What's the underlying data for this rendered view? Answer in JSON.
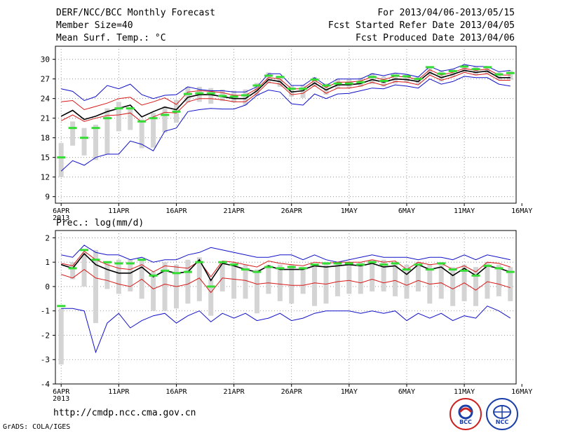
{
  "header": {
    "title": "DERF/NCC/BCC Monthly Forecast",
    "member_size": "Member Size=40",
    "variable": "Mean Surf. Temp.: °C",
    "forecast_range": "For 2013/04/06-2013/05/15",
    "start_ref": "Fcst Started Refer Date 2013/04/05",
    "produced": "Fcst Produced Date 2013/04/06"
  },
  "footer": {
    "url": "http://cmdp.ncc.cma.gov.cn",
    "grads": "GrADS: COLA/IGES",
    "logo_left_text": "BCC",
    "logo_right_text": "NCC"
  },
  "colors": {
    "envelope": "#1010c8",
    "spread": "#d81818",
    "mean": "#000000",
    "box": "#d4d4d4",
    "obs": "#33dd33"
  },
  "chart_data": [
    {
      "type": "line",
      "title": "Mean Surf. Temp.: °C",
      "ylim": [
        8,
        32
      ],
      "yticks": [
        9,
        12,
        15,
        18,
        21,
        24,
        27,
        30
      ],
      "xlim": [
        -0.5,
        39.5
      ],
      "x_ticks": [
        {
          "x": 0,
          "label": "6APR",
          "sub": "2013"
        },
        {
          "x": 5,
          "label": "11APR"
        },
        {
          "x": 10,
          "label": "16APR"
        },
        {
          "x": 15,
          "label": "21APR"
        },
        {
          "x": 20,
          "label": "26APR"
        },
        {
          "x": 25,
          "label": "1MAY"
        },
        {
          "x": 30,
          "label": "6MAY"
        },
        {
          "x": 35,
          "label": "11MAY"
        },
        {
          "x": 40,
          "label": "16MAY"
        }
      ],
      "grid": true,
      "series": [
        {
          "name": "max",
          "role": "envelope",
          "values": [
            25.5,
            25.1,
            23.7,
            24.3,
            26.0,
            25.5,
            26.2,
            24.6,
            24.0,
            24.5,
            24.6,
            25.8,
            25.4,
            25.2,
            25.2,
            25.0,
            25.0,
            25.8,
            27.8,
            27.8,
            26.0,
            26.0,
            27.2,
            26.0,
            27.0,
            27.0,
            27.0,
            27.8,
            27.5,
            27.9,
            27.7,
            27.3,
            28.9,
            28.2,
            28.5,
            29.2,
            28.9,
            28.9,
            28.1,
            28.3
          ]
        },
        {
          "name": "upper",
          "role": "spread",
          "values": [
            23.5,
            23.7,
            22.3,
            22.8,
            23.3,
            24.0,
            24.2,
            23.0,
            23.5,
            24.1,
            23.1,
            25.0,
            25.2,
            25.1,
            24.9,
            24.5,
            24.5,
            25.5,
            27.2,
            27.0,
            25.5,
            25.5,
            26.8,
            25.7,
            26.5,
            26.5,
            26.7,
            27.3,
            26.9,
            27.4,
            27.3,
            26.9,
            28.4,
            27.6,
            28.0,
            28.6,
            28.3,
            28.5,
            27.6,
            27.6
          ]
        },
        {
          "name": "mean",
          "role": "mean",
          "values": [
            21.3,
            22.2,
            20.8,
            21.3,
            22.0,
            22.5,
            23.0,
            21.2,
            22.0,
            22.7,
            22.3,
            24.2,
            24.6,
            24.6,
            24.3,
            24.0,
            24.0,
            25.2,
            26.9,
            26.6,
            25.0,
            25.2,
            26.4,
            25.3,
            26.1,
            26.1,
            26.3,
            26.9,
            26.5,
            27.0,
            26.9,
            26.6,
            28.0,
            27.2,
            27.7,
            28.3,
            28.0,
            28.2,
            27.2,
            27.2
          ]
        },
        {
          "name": "lower",
          "role": "spread",
          "values": [
            20.6,
            21.5,
            20.5,
            21.0,
            21.4,
            21.5,
            21.8,
            20.4,
            21.2,
            21.9,
            21.8,
            23.5,
            24.0,
            24.0,
            23.8,
            23.5,
            23.5,
            24.8,
            26.5,
            26.2,
            24.6,
            24.8,
            26.0,
            24.8,
            25.6,
            25.6,
            25.9,
            26.5,
            26.0,
            26.6,
            26.5,
            26.1,
            27.6,
            26.8,
            27.3,
            28.0,
            27.6,
            27.8,
            26.8,
            26.8
          ]
        },
        {
          "name": "min",
          "role": "envelope",
          "values": [
            12.9,
            14.5,
            13.8,
            15.0,
            15.5,
            15.5,
            17.5,
            17.0,
            16.0,
            19.0,
            19.5,
            22.0,
            22.3,
            22.5,
            22.4,
            22.4,
            23.0,
            24.5,
            25.3,
            25.0,
            23.2,
            23.0,
            24.7,
            24.0,
            24.7,
            24.8,
            25.2,
            25.6,
            25.5,
            26.1,
            25.9,
            25.6,
            27.0,
            26.2,
            26.6,
            27.4,
            27.2,
            27.2,
            26.2,
            25.9
          ]
        }
      ],
      "observed": [
        15.0,
        19.5,
        18.0,
        19.5,
        21.0,
        22.5,
        22.5,
        20.5,
        21.0,
        21.5,
        22.0,
        24.7,
        24.8,
        24.8,
        24.4,
        24.3,
        24.5,
        26.0,
        27.5,
        27.3,
        25.5,
        25.5,
        26.9,
        26.0,
        26.3,
        26.3,
        26.5,
        27.3,
        26.7,
        27.5,
        27.4,
        27.0,
        28.8,
        27.8,
        28.2,
        28.9,
        28.5,
        28.8,
        27.7,
        27.9
      ],
      "boxes": [
        [
          12.0,
          17.2
        ],
        [
          16.8,
          20.5
        ],
        [
          15.3,
          19.5
        ],
        [
          14.6,
          20.0
        ],
        [
          15.5,
          22.5
        ],
        [
          19.0,
          23.5
        ],
        [
          19.2,
          22.6
        ],
        [
          16.4,
          20.8
        ],
        [
          16.5,
          21.8
        ],
        [
          18.8,
          22.8
        ],
        [
          20.3,
          23.8
        ],
        [
          23.4,
          25.8
        ],
        [
          23.5,
          25.8
        ],
        [
          23.2,
          25.6
        ],
        [
          23.6,
          25.4
        ],
        [
          23.4,
          25.2
        ],
        [
          23.0,
          25.4
        ],
        [
          24.4,
          26.4
        ],
        [
          26.3,
          28.0
        ],
        [
          25.8,
          27.3
        ],
        [
          24.3,
          26.0
        ],
        [
          24.1,
          26.1
        ],
        [
          25.8,
          27.3
        ],
        [
          24.6,
          26.3
        ],
        [
          25.5,
          27.0
        ],
        [
          25.6,
          27.0
        ],
        [
          25.8,
          27.2
        ],
        [
          26.2,
          27.9
        ],
        [
          25.8,
          27.4
        ],
        [
          26.3,
          27.8
        ],
        [
          26.5,
          27.7
        ],
        [
          26.2,
          27.4
        ],
        [
          27.6,
          28.9
        ],
        [
          26.6,
          28.3
        ],
        [
          27.3,
          28.6
        ],
        [
          28.0,
          29.2
        ],
        [
          27.6,
          28.9
        ],
        [
          27.8,
          28.9
        ],
        [
          26.9,
          28.0
        ],
        [
          26.9,
          28.3
        ]
      ]
    },
    {
      "type": "line",
      "title": "Prec.: log(mm/d)",
      "ylim": [
        -4,
        2.3
      ],
      "yticks": [
        -4,
        -3,
        -2,
        -1,
        0,
        1,
        2
      ],
      "xlim": [
        -0.5,
        39.5
      ],
      "x_ticks": [
        {
          "x": 0,
          "label": "6APR",
          "sub": "2013"
        },
        {
          "x": 5,
          "label": "11APR"
        },
        {
          "x": 10,
          "label": "16APR"
        },
        {
          "x": 15,
          "label": "21APR"
        },
        {
          "x": 20,
          "label": "26APR"
        },
        {
          "x": 25,
          "label": "1MAY"
        },
        {
          "x": 30,
          "label": "6MAY"
        },
        {
          "x": 35,
          "label": "11MAY"
        },
        {
          "x": 40,
          "label": "16MAY"
        }
      ],
      "grid": true,
      "series": [
        {
          "name": "max",
          "role": "envelope",
          "values": [
            1.3,
            1.2,
            1.7,
            1.4,
            1.3,
            1.3,
            1.1,
            1.2,
            1.0,
            1.1,
            1.1,
            1.3,
            1.4,
            1.6,
            1.5,
            1.4,
            1.3,
            1.2,
            1.2,
            1.3,
            1.3,
            1.1,
            1.3,
            1.1,
            1.0,
            1.1,
            1.2,
            1.3,
            1.2,
            1.2,
            1.2,
            1.1,
            1.2,
            1.2,
            1.1,
            1.3,
            1.1,
            1.3,
            1.2,
            1.1
          ]
        },
        {
          "name": "upper",
          "role": "spread",
          "values": [
            0.95,
            0.85,
            1.45,
            1.1,
            0.9,
            0.75,
            0.7,
            0.9,
            0.6,
            0.85,
            0.8,
            0.75,
            1.05,
            0.4,
            1.05,
            1.0,
            0.9,
            0.8,
            1.05,
            0.95,
            0.9,
            0.85,
            1.0,
            0.95,
            1.0,
            1.0,
            1.0,
            1.1,
            1.0,
            1.05,
            0.7,
            1.0,
            0.9,
            0.95,
            0.7,
            0.85,
            0.6,
            1.0,
            0.95,
            0.8
          ]
        },
        {
          "name": "mean",
          "role": "mean",
          "values": [
            0.9,
            0.75,
            1.35,
            0.9,
            0.7,
            0.55,
            0.55,
            0.8,
            0.4,
            0.65,
            0.55,
            0.6,
            1.1,
            0.25,
            0.95,
            0.85,
            0.7,
            0.6,
            0.85,
            0.7,
            0.7,
            0.7,
            0.85,
            0.8,
            0.85,
            0.9,
            0.85,
            0.95,
            0.8,
            0.85,
            0.5,
            0.9,
            0.7,
            0.8,
            0.45,
            0.75,
            0.45,
            0.85,
            0.75,
            0.6
          ]
        },
        {
          "name": "lower",
          "role": "spread",
          "values": [
            0.5,
            0.35,
            0.7,
            0.35,
            0.25,
            0.1,
            0.0,
            0.3,
            -0.1,
            0.1,
            0.0,
            0.1,
            0.35,
            -0.25,
            0.35,
            0.3,
            0.25,
            0.1,
            0.15,
            0.1,
            0.05,
            0.05,
            0.15,
            0.1,
            0.2,
            0.25,
            0.15,
            0.3,
            0.15,
            0.25,
            0.05,
            0.25,
            0.1,
            0.15,
            -0.1,
            0.15,
            -0.15,
            0.2,
            0.1,
            -0.05
          ]
        },
        {
          "name": "min",
          "role": "envelope",
          "values": [
            -0.9,
            -0.9,
            -1.0,
            -2.7,
            -1.5,
            -1.1,
            -1.7,
            -1.4,
            -1.2,
            -1.1,
            -1.5,
            -1.2,
            -1.0,
            -1.45,
            -1.1,
            -1.3,
            -1.1,
            -1.4,
            -1.3,
            -1.1,
            -1.4,
            -1.3,
            -1.1,
            -1.0,
            -1.0,
            -1.0,
            -1.1,
            -1.0,
            -1.1,
            -1.0,
            -1.4,
            -1.1,
            -1.3,
            -1.1,
            -1.4,
            -1.2,
            -1.3,
            -0.8,
            -1.0,
            -1.3
          ]
        }
      ],
      "observed": [
        -0.8,
        0.75,
        1.5,
        1.1,
        1.0,
        0.95,
        0.95,
        1.1,
        0.45,
        0.65,
        0.55,
        0.6,
        1.0,
        0.0,
        1.0,
        0.9,
        0.7,
        0.6,
        0.8,
        0.75,
        0.8,
        0.75,
        0.9,
        0.95,
        0.95,
        0.95,
        0.9,
        1.0,
        0.9,
        0.95,
        0.7,
        0.9,
        0.7,
        0.95,
        0.7,
        0.65,
        0.45,
        0.85,
        0.75,
        0.6
      ],
      "boxes": [
        [
          -3.2,
          -0.9
        ],
        [
          0.3,
          1.0
        ],
        [
          0.0,
          1.4
        ],
        [
          -1.5,
          1.5
        ],
        [
          -0.1,
          1.0
        ],
        [
          -0.3,
          1.1
        ],
        [
          -0.2,
          1.1
        ],
        [
          -0.5,
          1.1
        ],
        [
          -1.0,
          0.6
        ],
        [
          -1.0,
          1.0
        ],
        [
          -0.9,
          0.9
        ],
        [
          -0.7,
          1.1
        ],
        [
          -0.6,
          1.2
        ],
        [
          -1.2,
          0.3
        ],
        [
          -0.2,
          1.0
        ],
        [
          -0.5,
          1.0
        ],
        [
          -0.5,
          0.9
        ],
        [
          -1.1,
          0.7
        ],
        [
          -0.3,
          0.9
        ],
        [
          -0.6,
          0.9
        ],
        [
          -0.7,
          0.9
        ],
        [
          -0.3,
          0.8
        ],
        [
          -0.8,
          0.9
        ],
        [
          -0.7,
          1.0
        ],
        [
          -0.4,
          1.0
        ],
        [
          -0.3,
          1.0
        ],
        [
          -0.3,
          1.0
        ],
        [
          -0.2,
          1.1
        ],
        [
          -0.2,
          1.1
        ],
        [
          -0.4,
          1.0
        ],
        [
          -0.5,
          0.9
        ],
        [
          -0.2,
          1.0
        ],
        [
          -0.7,
          0.9
        ],
        [
          -0.5,
          1.0
        ],
        [
          -0.8,
          0.8
        ],
        [
          -0.6,
          0.9
        ],
        [
          -0.8,
          0.8
        ],
        [
          -0.5,
          1.0
        ],
        [
          -0.4,
          0.9
        ],
        [
          -0.6,
          0.8
        ]
      ]
    }
  ],
  "panel2_label": "Prec.: log(mm/d)"
}
